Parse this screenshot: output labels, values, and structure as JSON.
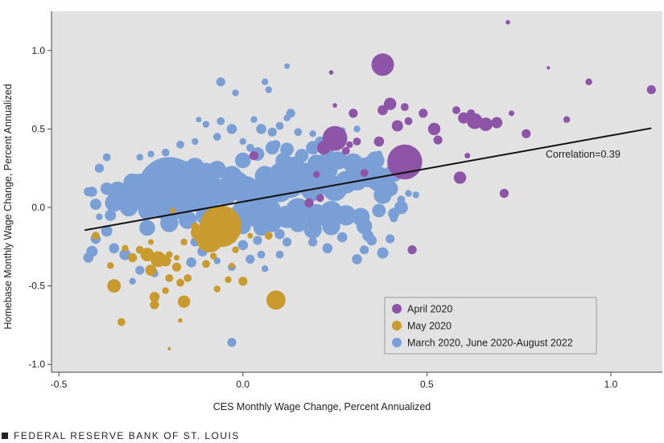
{
  "chart_data": {
    "type": "scatter",
    "xlabel": "CES Monthly Wage Change, Percent Annualized",
    "ylabel": "Homebase Monthly Wage Change, Percent Annualized",
    "xlim": [
      -0.52,
      1.14
    ],
    "ylim": [
      -1.05,
      1.25
    ],
    "x_ticks": [
      -0.5,
      0.0,
      0.5,
      1.0
    ],
    "x_tick_labels": [
      "-0.5",
      "0.0",
      "0.5",
      "1.0"
    ],
    "y_ticks": [
      -1.0,
      -0.5,
      0.0,
      0.5,
      1.0
    ],
    "y_tick_labels": [
      "-1.0",
      "-0.5",
      "0.0",
      "0.5",
      "1.0"
    ],
    "grid": false,
    "legend_position": "bottom-right",
    "annotation": "Correlation=0.39",
    "trend_line": {
      "x": [
        -0.43,
        1.11
      ],
      "y": [
        -0.145,
        0.505
      ]
    },
    "series": [
      {
        "name": "March 2020, June 2020-August 2022",
        "color": "#7a9fd6",
        "points": [
          [
            -0.2,
            0.12,
            2.8
          ],
          [
            -0.28,
            0.1,
            1.6
          ],
          [
            -0.17,
            0.08,
            1.7
          ],
          [
            -0.12,
            0.08,
            1.5
          ],
          [
            -0.09,
            0.1,
            1.4
          ],
          [
            -0.05,
            0.1,
            1.2
          ],
          [
            -0.02,
            0.14,
            1.3
          ],
          [
            0.01,
            0.12,
            1.1
          ],
          [
            0.04,
            0.08,
            1.3
          ],
          [
            0.07,
            0.14,
            1.1
          ],
          [
            0.1,
            0.12,
            1.2
          ],
          [
            0.13,
            0.14,
            1.1
          ],
          [
            0.16,
            0.16,
            1.0
          ],
          [
            0.19,
            0.12,
            1.1
          ],
          [
            0.22,
            0.16,
            1.0
          ],
          [
            0.25,
            0.12,
            1.1
          ],
          [
            0.28,
            0.16,
            1.0
          ],
          [
            0.31,
            0.18,
            1.0
          ],
          [
            0.34,
            0.2,
            1.0
          ],
          [
            0.37,
            0.18,
            1.1
          ],
          [
            0.38,
            0.08,
            0.8
          ],
          [
            0.15,
            -0.02,
            1.1
          ],
          [
            0.2,
            -0.05,
            1.0
          ],
          [
            0.24,
            -0.03,
            1.0
          ],
          [
            0.28,
            -0.05,
            0.9
          ],
          [
            0.32,
            -0.06,
            0.8
          ],
          [
            0.12,
            -0.06,
            1.0
          ],
          [
            0.07,
            -0.02,
            1.1
          ],
          [
            0.03,
            -0.05,
            1.0
          ],
          [
            0.0,
            -0.03,
            1.0
          ],
          [
            0.02,
            0.04,
            1.2
          ],
          [
            0.06,
            0.2,
            0.9
          ],
          [
            0.1,
            0.22,
            0.9
          ],
          [
            0.14,
            0.26,
            0.9
          ],
          [
            0.17,
            0.22,
            0.9
          ],
          [
            0.2,
            0.28,
            0.8
          ],
          [
            0.23,
            0.24,
            0.9
          ],
          [
            0.26,
            0.3,
            0.8
          ],
          [
            0.3,
            0.28,
            0.9
          ],
          [
            0.33,
            0.26,
            0.8
          ],
          [
            0.36,
            0.3,
            0.8
          ],
          [
            -0.03,
            0.2,
            0.9
          ],
          [
            -0.07,
            0.24,
            0.8
          ],
          [
            -0.1,
            0.22,
            0.9
          ],
          [
            -0.13,
            0.26,
            0.8
          ],
          [
            -0.16,
            0.24,
            0.8
          ],
          [
            -0.24,
            0.2,
            0.8
          ],
          [
            -0.3,
            0.16,
            0.8
          ],
          [
            -0.34,
            0.1,
            0.9
          ],
          [
            -0.35,
            0.03,
            0.8
          ],
          [
            -0.31,
            0.0,
            0.8
          ],
          [
            -0.26,
            -0.02,
            0.8
          ],
          [
            -0.1,
            -0.05,
            0.9
          ],
          [
            -0.06,
            -0.08,
            0.8
          ],
          [
            -0.15,
            -0.08,
            0.8
          ],
          [
            -0.2,
            -0.1,
            0.8
          ],
          [
            -0.26,
            -0.13,
            0.7
          ],
          [
            0.08,
            -0.1,
            0.8
          ],
          [
            0.15,
            -0.1,
            0.8
          ],
          [
            0.19,
            -0.14,
            0.8
          ],
          [
            0.24,
            -0.12,
            0.8
          ],
          [
            0.33,
            -0.12,
            0.7
          ],
          [
            0.05,
            -0.13,
            0.7
          ],
          [
            0.0,
            -0.12,
            0.7
          ],
          [
            0.11,
            0.3,
            0.7
          ],
          [
            0.16,
            0.33,
            0.6
          ],
          [
            0.0,
            0.3,
            0.7
          ],
          [
            0.04,
            0.34,
            0.6
          ],
          [
            0.08,
            0.38,
            0.6
          ],
          [
            0.12,
            0.37,
            0.6
          ],
          [
            0.19,
            0.38,
            0.6
          ],
          [
            0.23,
            0.34,
            0.6
          ],
          [
            0.41,
            0.22,
            0.8
          ],
          [
            0.4,
            0.12,
            0.7
          ],
          [
            0.43,
            0.0,
            0.6
          ],
          [
            0.41,
            -0.04,
            0.5
          ],
          [
            0.37,
            -0.02,
            0.6
          ],
          [
            -0.4,
            0.02,
            0.5
          ],
          [
            -0.36,
            -0.05,
            0.5
          ],
          [
            -0.37,
            -0.15,
            0.5
          ],
          [
            -0.4,
            -0.2,
            0.45
          ],
          [
            -0.41,
            -0.28,
            0.5
          ],
          [
            -0.35,
            -0.26,
            0.45
          ],
          [
            -0.32,
            -0.3,
            0.5
          ],
          [
            -0.42,
            -0.32,
            0.45
          ],
          [
            -0.37,
            0.32,
            0.35
          ],
          [
            -0.39,
            0.25,
            0.4
          ],
          [
            -0.41,
            0.1,
            0.45
          ],
          [
            -0.39,
            -0.06,
            0.3
          ],
          [
            -0.28,
            -0.4,
            0.4
          ],
          [
            -0.24,
            -0.42,
            0.35
          ],
          [
            -0.3,
            -0.47,
            0.3
          ],
          [
            -0.14,
            -0.35,
            0.45
          ],
          [
            -0.13,
            -0.22,
            0.4
          ],
          [
            -0.11,
            -0.28,
            0.45
          ],
          [
            -0.07,
            -0.34,
            0.3
          ],
          [
            -0.03,
            -0.38,
            0.35
          ],
          [
            -0.07,
            -0.22,
            0.4
          ],
          [
            -0.03,
            -0.2,
            0.4
          ],
          [
            0.0,
            -0.24,
            0.45
          ],
          [
            0.04,
            -0.21,
            0.4
          ],
          [
            0.02,
            -0.33,
            0.4
          ],
          [
            0.05,
            -0.3,
            0.35
          ],
          [
            0.1,
            -0.3,
            0.35
          ],
          [
            0.06,
            -0.39,
            0.3
          ],
          [
            0.12,
            -0.22,
            0.4
          ],
          [
            0.1,
            -0.17,
            0.45
          ],
          [
            0.19,
            -0.22,
            0.4
          ],
          [
            0.23,
            -0.26,
            0.45
          ],
          [
            0.27,
            -0.19,
            0.45
          ],
          [
            0.34,
            -0.18,
            0.5
          ],
          [
            0.33,
            -0.27,
            0.4
          ],
          [
            0.35,
            -0.21,
            0.45
          ],
          [
            0.31,
            -0.33,
            0.45
          ],
          [
            0.38,
            -0.29,
            0.5
          ],
          [
            0.4,
            -0.2,
            0.4
          ],
          [
            0.41,
            -0.07,
            0.35
          ],
          [
            0.43,
            0.05,
            0.35
          ],
          [
            0.45,
            0.09,
            0.3
          ],
          [
            -0.03,
            -0.86,
            0.4
          ],
          [
            -0.06,
            0.8,
            0.4
          ],
          [
            -0.02,
            0.73,
            0.3
          ],
          [
            -0.06,
            0.55,
            0.35
          ],
          [
            -0.1,
            0.53,
            0.3
          ],
          [
            -0.12,
            0.56,
            0.25
          ],
          [
            -0.07,
            0.45,
            0.35
          ],
          [
            -0.03,
            0.5,
            0.45
          ],
          [
            0.0,
            0.42,
            0.3
          ],
          [
            0.02,
            0.38,
            0.35
          ],
          [
            0.05,
            0.5,
            0.45
          ],
          [
            0.08,
            0.48,
            0.4
          ],
          [
            0.1,
            0.52,
            0.35
          ],
          [
            0.09,
            0.4,
            0.4
          ],
          [
            0.15,
            0.48,
            0.35
          ],
          [
            0.19,
            0.47,
            0.3
          ],
          [
            0.13,
            0.6,
            0.4
          ],
          [
            0.12,
            0.57,
            0.3
          ],
          [
            0.21,
            0.42,
            0.45
          ],
          [
            0.27,
            0.49,
            0.3
          ],
          [
            0.31,
            0.5,
            0.3
          ],
          [
            -0.13,
            0.42,
            0.3
          ],
          [
            -0.17,
            0.4,
            0.35
          ],
          [
            -0.21,
            0.35,
            0.35
          ],
          [
            -0.25,
            0.34,
            0.3
          ],
          [
            -0.28,
            0.32,
            0.3
          ],
          [
            -0.37,
            0.12,
            0.55
          ],
          [
            -0.42,
            0.1,
            0.4
          ],
          [
            0.03,
            0.56,
            0.3
          ],
          [
            0.12,
            0.9,
            0.25
          ],
          [
            0.07,
            0.75,
            0.3
          ],
          [
            0.06,
            0.8,
            0.3
          ],
          [
            0.34,
            0.3,
            0.35
          ],
          [
            0.37,
            0.34,
            0.3
          ],
          [
            0.44,
            0.25,
            0.35
          ],
          [
            0.47,
            0.08,
            0.3
          ],
          [
            -0.2,
            -0.05,
            0.3
          ]
        ]
      },
      {
        "name": "May 2020",
        "color": "#c99a2e",
        "points": [
          [
            -0.06,
            -0.12,
            1.85
          ],
          [
            -0.09,
            -0.2,
            1.2
          ],
          [
            -0.12,
            -0.16,
            0.7
          ],
          [
            -0.03,
            -0.1,
            0.6
          ],
          [
            0.09,
            -0.59,
            0.85
          ],
          [
            -0.35,
            -0.5,
            0.6
          ],
          [
            -0.23,
            -0.33,
            0.7
          ],
          [
            -0.26,
            -0.3,
            0.6
          ],
          [
            -0.21,
            -0.34,
            0.5
          ],
          [
            -0.25,
            -0.4,
            0.5
          ],
          [
            -0.18,
            -0.38,
            0.4
          ],
          [
            -0.15,
            -0.45,
            0.35
          ],
          [
            -0.16,
            -0.6,
            0.55
          ],
          [
            -0.17,
            -0.48,
            0.35
          ],
          [
            -0.24,
            -0.57,
            0.45
          ],
          [
            -0.24,
            -0.62,
            0.4
          ],
          [
            -0.21,
            -0.53,
            0.3
          ],
          [
            -0.2,
            -0.45,
            0.35
          ],
          [
            -0.3,
            -0.32,
            0.4
          ],
          [
            -0.28,
            -0.27,
            0.35
          ],
          [
            -0.32,
            -0.26,
            0.3
          ],
          [
            -0.36,
            -0.37,
            0.3
          ],
          [
            -0.4,
            -0.18,
            0.35
          ],
          [
            -0.33,
            -0.73,
            0.35
          ],
          [
            -0.1,
            -0.36,
            0.35
          ],
          [
            -0.08,
            -0.31,
            0.3
          ],
          [
            -0.04,
            -0.46,
            0.3
          ],
          [
            -0.07,
            -0.52,
            0.3
          ],
          [
            -0.03,
            -0.37,
            0.25
          ],
          [
            0.0,
            -0.47,
            0.4
          ],
          [
            -0.02,
            -0.27,
            0.3
          ],
          [
            0.02,
            -0.18,
            0.25
          ],
          [
            0.07,
            -0.18,
            0.35
          ],
          [
            -0.13,
            -0.12,
            0.35
          ],
          [
            -0.16,
            -0.22,
            0.3
          ],
          [
            -0.17,
            -0.72,
            0.2
          ],
          [
            -0.2,
            -0.3,
            0.3
          ],
          [
            -0.19,
            -0.02,
            0.25
          ],
          [
            -0.2,
            -0.9,
            0.15
          ],
          [
            -0.18,
            -0.32,
            0.25
          ],
          [
            -0.25,
            -0.22,
            0.25
          ]
        ]
      },
      {
        "name": "April 2020",
        "color": "#8e54a7",
        "points": [
          [
            0.44,
            0.29,
            1.55
          ],
          [
            0.38,
            0.91,
            1.0
          ],
          [
            0.25,
            0.44,
            1.1
          ],
          [
            0.22,
            0.38,
            0.6
          ],
          [
            0.72,
            1.18,
            0.2
          ],
          [
            0.6,
            0.57,
            0.5
          ],
          [
            0.63,
            0.55,
            0.7
          ],
          [
            0.66,
            0.53,
            0.6
          ],
          [
            0.69,
            0.54,
            0.5
          ],
          [
            0.52,
            0.5,
            0.55
          ],
          [
            0.53,
            0.43,
            0.4
          ],
          [
            0.61,
            0.33,
            0.25
          ],
          [
            0.4,
            0.66,
            0.55
          ],
          [
            0.38,
            0.62,
            0.45
          ],
          [
            0.44,
            0.64,
            0.35
          ],
          [
            0.45,
            0.55,
            0.35
          ],
          [
            0.49,
            0.6,
            0.4
          ],
          [
            0.42,
            0.52,
            0.5
          ],
          [
            0.37,
            0.42,
            0.45
          ],
          [
            0.31,
            0.42,
            0.35
          ],
          [
            0.28,
            0.36,
            0.35
          ],
          [
            0.3,
            0.6,
            0.4
          ],
          [
            0.25,
            0.65,
            0.2
          ],
          [
            0.24,
            0.86,
            0.2
          ],
          [
            0.62,
            0.6,
            0.35
          ],
          [
            0.73,
            0.6,
            0.25
          ],
          [
            0.77,
            0.47,
            0.4
          ],
          [
            0.58,
            0.62,
            0.35
          ],
          [
            0.88,
            0.56,
            0.3
          ],
          [
            0.94,
            0.8,
            0.3
          ],
          [
            1.11,
            0.75,
            0.4
          ],
          [
            0.83,
            0.89,
            0.15
          ],
          [
            0.59,
            0.19,
            0.55
          ],
          [
            0.71,
            0.09,
            0.4
          ],
          [
            0.46,
            -0.27,
            0.4
          ],
          [
            0.18,
            0.03,
            0.4
          ],
          [
            0.21,
            0.06,
            0.35
          ],
          [
            0.03,
            0.33,
            0.4
          ],
          [
            0.2,
            0.21,
            0.3
          ],
          [
            0.33,
            0.22,
            0.35
          ],
          [
            0.29,
            0.4,
            0.3
          ]
        ]
      }
    ]
  },
  "footer": {
    "source": "FEDERAL RESERVE BANK OF ST. LOUIS"
  }
}
